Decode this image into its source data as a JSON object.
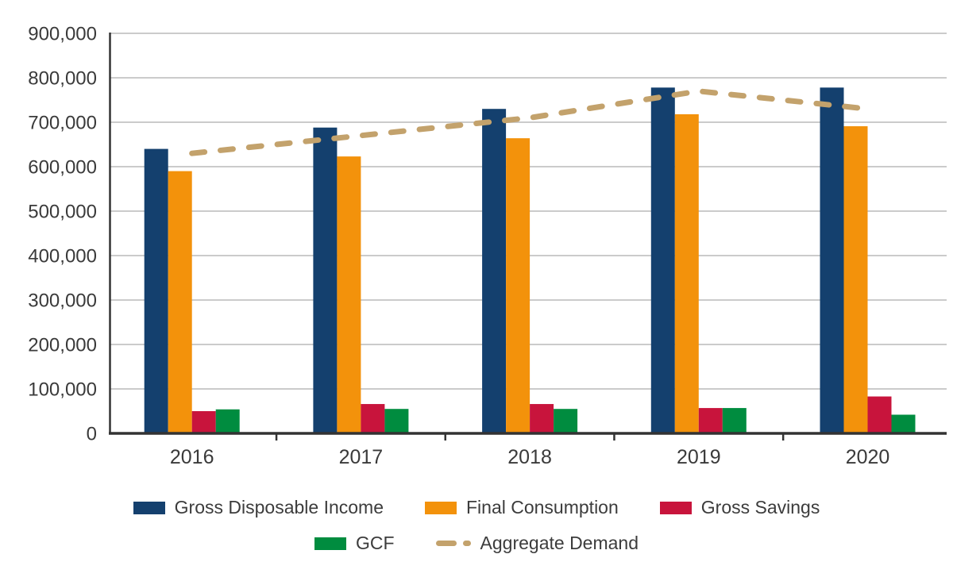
{
  "chart_data": {
    "type": "bar",
    "subtype": "grouped-bars-with-line-overlay",
    "categories": [
      "2016",
      "2017",
      "2018",
      "2019",
      "2020"
    ],
    "series": [
      {
        "name": "Gross Disposable Income",
        "type": "bar",
        "color": "#14406E",
        "values": [
          640000,
          688000,
          730000,
          778000,
          778000
        ]
      },
      {
        "name": "Final Consumption",
        "type": "bar",
        "color": "#F3920B",
        "values": [
          590000,
          623000,
          664000,
          718000,
          691000
        ]
      },
      {
        "name": "Gross Savings",
        "type": "bar",
        "color": "#C8143C",
        "values": [
          50000,
          66000,
          66000,
          57000,
          83000
        ]
      },
      {
        "name": "GCF",
        "type": "bar",
        "color": "#008C3F",
        "values": [
          54000,
          55000,
          55000,
          57000,
          42000
        ]
      },
      {
        "name": "Aggregate Demand",
        "type": "line",
        "style": "dashed",
        "color": "#C3A26C",
        "values": [
          630000,
          670000,
          710000,
          770000,
          730000
        ]
      }
    ],
    "title": "",
    "xlabel": "",
    "ylabel": "",
    "ylim": [
      0,
      900000
    ],
    "ytick_step": 100000,
    "ytick_labels": [
      "0",
      "100,000",
      "200,000",
      "300,000",
      "400,000",
      "500,000",
      "600,000",
      "700,000",
      "800,000",
      "900,000"
    ],
    "grid": "horizontal",
    "legend_position": "bottom",
    "colors": {
      "axis": "#333333",
      "grid": "#CBCBCB",
      "tick_text": "#3A3A3A",
      "legend_text": "#3C3C3C",
      "background": "#FFFFFF"
    }
  }
}
